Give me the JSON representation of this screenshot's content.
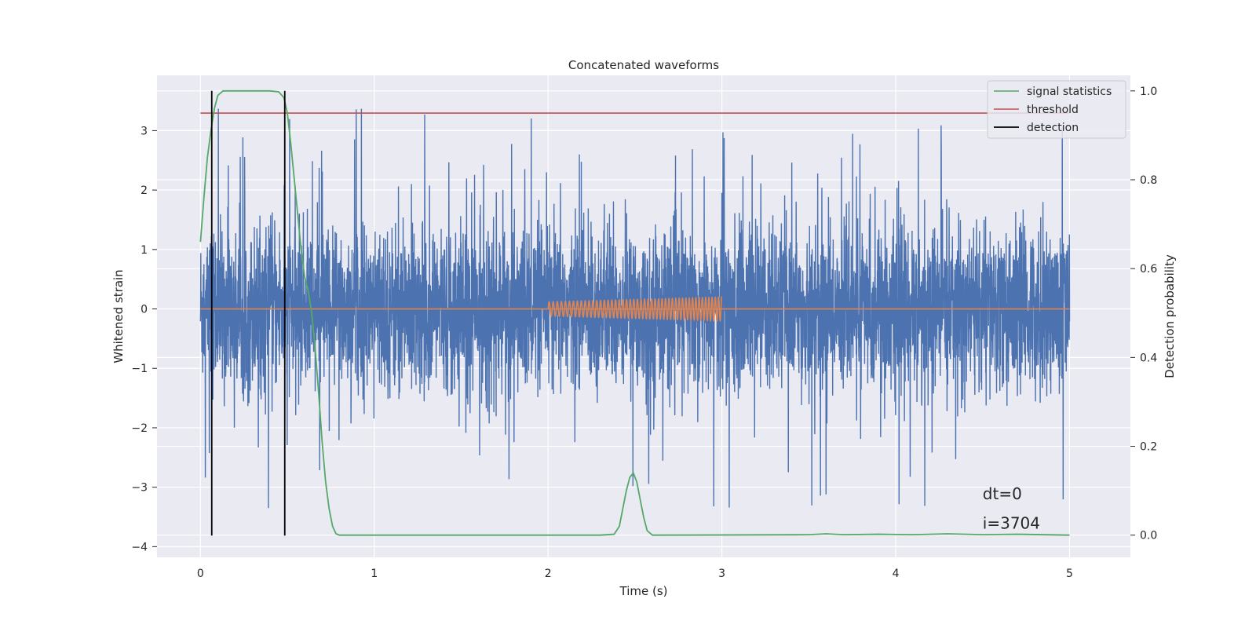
{
  "chart_data": {
    "type": "line",
    "title": "Concatenated waveforms",
    "xlabel": "Time (s)",
    "ylabel": "Whitened strain",
    "y2label": "Detection probability",
    "xlim": [
      -0.25,
      5.35
    ],
    "ylim": [
      -4.18,
      3.93
    ],
    "y2lim": [
      -0.05,
      1.035
    ],
    "x_ticks": [
      0,
      1,
      2,
      3,
      4,
      5
    ],
    "y_ticks": [
      -4,
      -3,
      -2,
      -1,
      0,
      1,
      2,
      3
    ],
    "y2_ticks": [
      0.0,
      0.2,
      0.4,
      0.6,
      0.8,
      1.0
    ],
    "x_tick_labels": [
      "0",
      "1",
      "2",
      "3",
      "4",
      "5"
    ],
    "y_tick_labels": [
      "−4",
      "−3",
      "−2",
      "−1",
      "0",
      "1",
      "2",
      "3"
    ],
    "y2_tick_labels": [
      "0.0",
      "0.2",
      "0.4",
      "0.6",
      "0.8",
      "1.0"
    ],
    "grid": true,
    "legend_position": "top-right",
    "legend": [
      {
        "label": "signal statistics",
        "color": "#55a868"
      },
      {
        "label": "threshold",
        "color": "#c44e52"
      },
      {
        "label": "detection",
        "color": "#000000"
      }
    ],
    "noise_series": {
      "color": "#4c72b0",
      "x_range": [
        0,
        5
      ],
      "typical_amplitude": 0.9,
      "max_amplitude": 3.6,
      "min_amplitude": -3.7
    },
    "chirp_series": {
      "color": "#dd8452",
      "baseline": 0,
      "x_range": [
        2,
        3
      ],
      "amplitude_start": 0.12,
      "amplitude_end": 0.2,
      "cycles": 42
    },
    "signal_statistics": {
      "axis": "right",
      "color": "#55a868",
      "points": [
        [
          0.0,
          0.66
        ],
        [
          0.02,
          0.76
        ],
        [
          0.04,
          0.85
        ],
        [
          0.06,
          0.91
        ],
        [
          0.08,
          0.96
        ],
        [
          0.1,
          0.99
        ],
        [
          0.13,
          1.0
        ],
        [
          0.2,
          1.0
        ],
        [
          0.3,
          1.0
        ],
        [
          0.4,
          1.0
        ],
        [
          0.45,
          0.998
        ],
        [
          0.48,
          0.985
        ],
        [
          0.5,
          0.95
        ],
        [
          0.52,
          0.88
        ],
        [
          0.54,
          0.8
        ],
        [
          0.56,
          0.72
        ],
        [
          0.58,
          0.64
        ],
        [
          0.6,
          0.58
        ],
        [
          0.62,
          0.55
        ],
        [
          0.64,
          0.5
        ],
        [
          0.66,
          0.42
        ],
        [
          0.68,
          0.32
        ],
        [
          0.7,
          0.21
        ],
        [
          0.72,
          0.12
        ],
        [
          0.74,
          0.06
        ],
        [
          0.76,
          0.02
        ],
        [
          0.78,
          0.003
        ],
        [
          0.8,
          0.0
        ],
        [
          2.3,
          0.0
        ],
        [
          2.38,
          0.002
        ],
        [
          2.41,
          0.02
        ],
        [
          2.43,
          0.06
        ],
        [
          2.45,
          0.1
        ],
        [
          2.47,
          0.13
        ],
        [
          2.49,
          0.14
        ],
        [
          2.51,
          0.12
        ],
        [
          2.53,
          0.08
        ],
        [
          2.55,
          0.04
        ],
        [
          2.57,
          0.01
        ],
        [
          2.6,
          0.0
        ],
        [
          3.5,
          0.001
        ],
        [
          3.6,
          0.003
        ],
        [
          3.7,
          0.001
        ],
        [
          3.9,
          0.002
        ],
        [
          4.1,
          0.001
        ],
        [
          4.3,
          0.003
        ],
        [
          4.5,
          0.001
        ],
        [
          4.7,
          0.002
        ],
        [
          5.0,
          0.0
        ]
      ]
    },
    "threshold": {
      "axis": "right",
      "color": "#c44e52",
      "value": 0.95,
      "x_range": [
        0,
        5
      ]
    },
    "detections": {
      "color": "#000000",
      "x": [
        0.065,
        0.485
      ],
      "y_range": [
        -0.001,
        1.0
      ]
    },
    "annotations": [
      {
        "text": "dt=0",
        "x": 4.5,
        "y": -3.2
      },
      {
        "text": "i=3704",
        "x": 4.5,
        "y": -3.7
      }
    ]
  }
}
